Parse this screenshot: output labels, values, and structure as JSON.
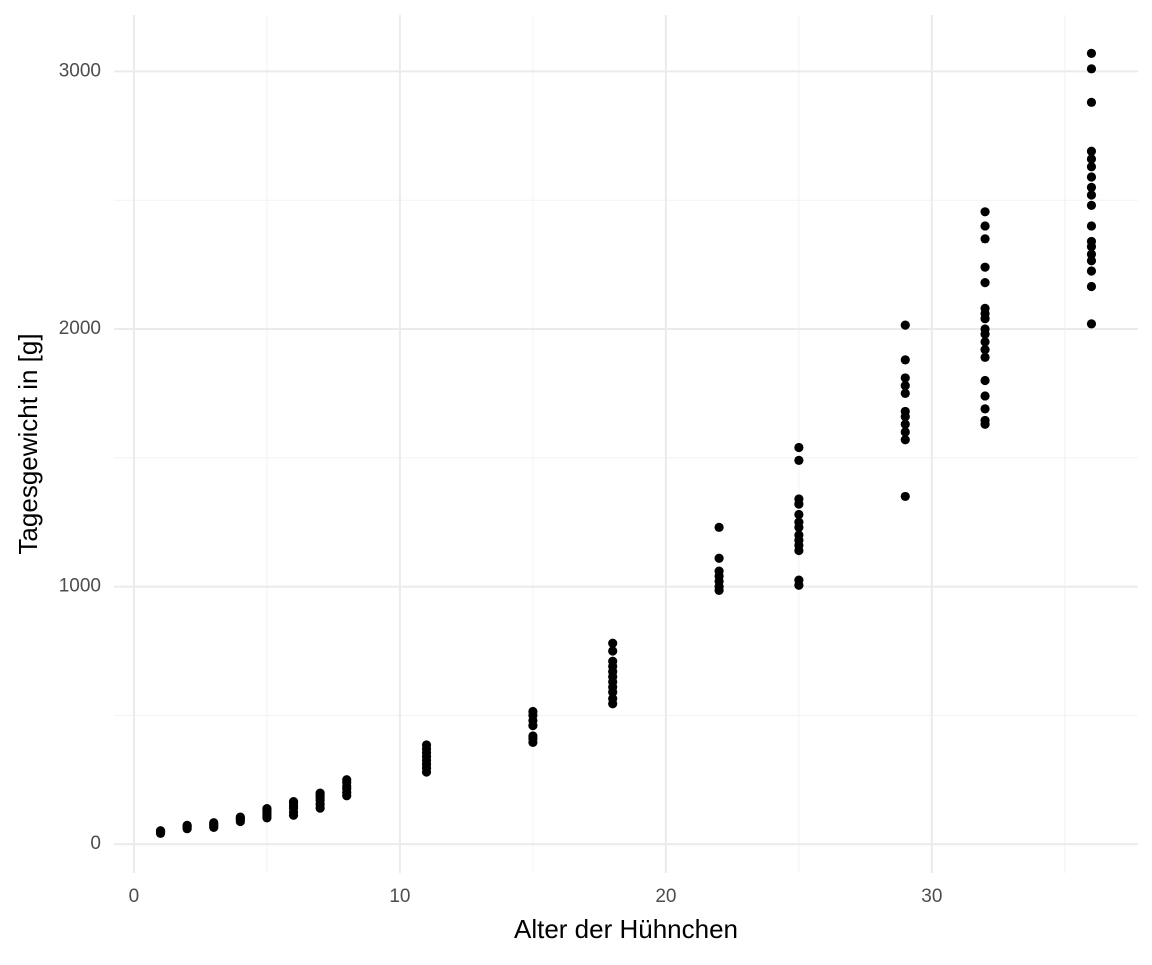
{
  "chart_data": {
    "type": "scatter",
    "x_label": "Alter der Hühnchen",
    "y_label": "Tagesgewicht in [g]",
    "x": [
      1,
      1,
      1,
      1,
      1,
      2,
      2,
      2,
      2,
      3,
      3,
      3,
      3,
      4,
      4,
      4,
      4,
      5,
      5,
      5,
      5,
      5,
      5,
      6,
      6,
      6,
      6,
      6,
      6,
      7,
      7,
      7,
      7,
      7,
      7,
      8,
      8,
      8,
      8,
      8,
      8,
      11,
      11,
      11,
      11,
      11,
      11,
      11,
      11,
      15,
      15,
      15,
      15,
      15,
      15,
      15,
      18,
      18,
      18,
      18,
      18,
      18,
      18,
      18,
      18,
      18,
      18,
      22,
      22,
      22,
      22,
      22,
      22,
      22,
      25,
      25,
      25,
      25,
      25,
      25,
      25,
      25,
      25,
      25,
      25,
      25,
      25,
      29,
      29,
      29,
      29,
      29,
      29,
      29,
      29,
      29,
      29,
      29,
      32,
      32,
      32,
      32,
      32,
      32,
      32,
      32,
      32,
      32,
      32,
      32,
      32,
      32,
      32,
      32,
      32,
      32,
      36,
      36,
      36,
      36,
      36,
      36,
      36,
      36,
      36,
      36,
      36,
      36,
      36,
      36,
      36,
      36,
      36,
      36
    ],
    "values": [
      42,
      45,
      48,
      50,
      52,
      60,
      65,
      70,
      73,
      65,
      72,
      78,
      83,
      88,
      95,
      100,
      105,
      102,
      110,
      118,
      125,
      132,
      138,
      112,
      125,
      140,
      150,
      160,
      165,
      140,
      155,
      170,
      180,
      190,
      198,
      188,
      200,
      215,
      225,
      240,
      250,
      280,
      295,
      310,
      325,
      340,
      355,
      370,
      385,
      395,
      410,
      420,
      460,
      480,
      500,
      515,
      545,
      565,
      590,
      610,
      630,
      650,
      670,
      690,
      710,
      750,
      780,
      985,
      1000,
      1020,
      1040,
      1060,
      1110,
      1230,
      1005,
      1025,
      1140,
      1160,
      1180,
      1200,
      1230,
      1250,
      1280,
      1320,
      1340,
      1490,
      1540,
      1350,
      1570,
      1600,
      1630,
      1660,
      1680,
      1750,
      1780,
      1810,
      1880,
      2015,
      1630,
      1645,
      1690,
      1740,
      1800,
      1890,
      1920,
      1950,
      1980,
      2000,
      2040,
      2060,
      2080,
      2180,
      2240,
      2350,
      2400,
      2455,
      2020,
      2165,
      2225,
      2265,
      2290,
      2320,
      2340,
      2400,
      2480,
      2520,
      2550,
      2590,
      2630,
      2660,
      2690,
      2880,
      3010,
      3070
    ],
    "color": "#000000",
    "xlim": [
      -0.75,
      37.75
    ],
    "xticks": [
      0,
      10,
      20,
      30
    ],
    "xminor": [
      5,
      15,
      25,
      35
    ],
    "ylim": [
      -112,
      3219
    ],
    "yticks": [
      0,
      1000,
      2000,
      3000
    ],
    "yminor": [
      500,
      1500,
      2500
    ],
    "grid": true
  }
}
